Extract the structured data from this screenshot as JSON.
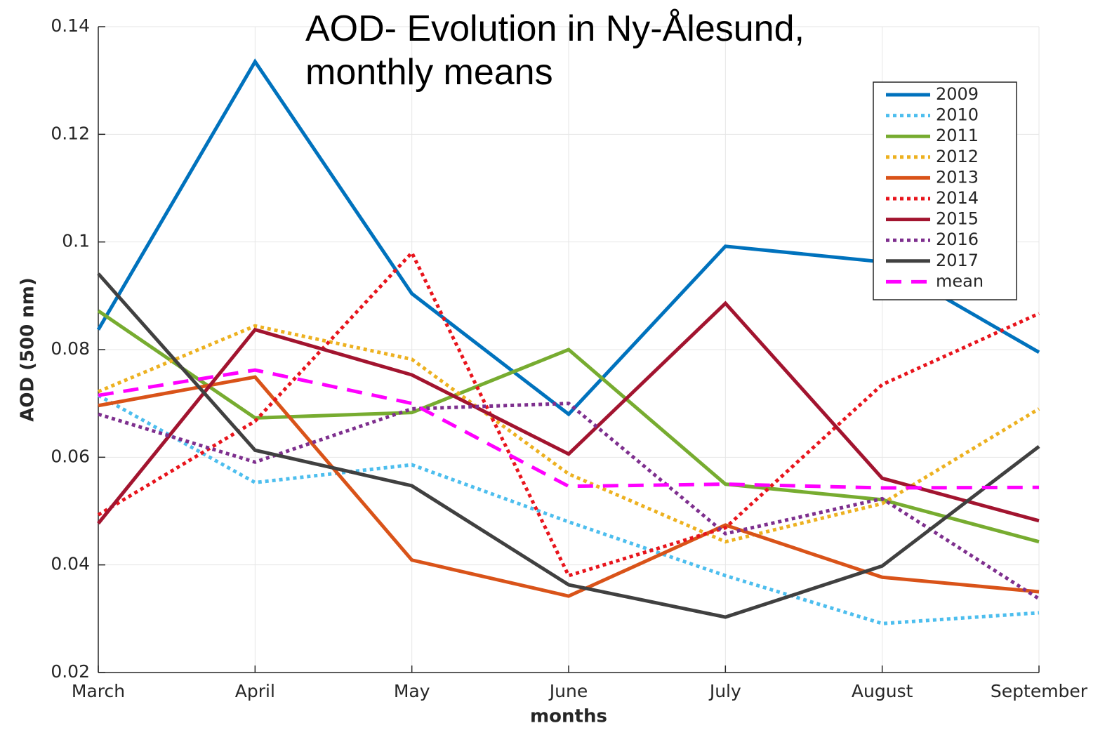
{
  "chart_data": {
    "type": "line",
    "title": "AOD- Evolution in Ny-Ålesund, monthly means",
    "x_label": "months",
    "y_label": "AOD (500 nm)",
    "categories": [
      "March",
      "April",
      "May",
      "June",
      "July",
      "August",
      "September"
    ],
    "ylim": [
      0.02,
      0.14
    ],
    "yticks": [
      0.02,
      0.04,
      0.06,
      0.08,
      0.1,
      0.12,
      0.14
    ],
    "grid": true,
    "legend": "upper right",
    "series": [
      {
        "name": "2009",
        "color": "#0072bd",
        "style": "solid",
        "values": [
          0.0837,
          0.1335,
          0.0904,
          0.068,
          0.0992,
          0.0963,
          0.0795
        ]
      },
      {
        "name": "2010",
        "color": "#4dbeee",
        "style": "dotted",
        "values": [
          0.0715,
          0.0553,
          0.0586,
          0.048,
          0.038,
          0.0291,
          0.0311
        ]
      },
      {
        "name": "2011",
        "color": "#77ac30",
        "style": "solid",
        "values": [
          0.0872,
          0.0673,
          0.0683,
          0.08,
          0.055,
          0.0521,
          0.0443
        ]
      },
      {
        "name": "2012",
        "color": "#edb120",
        "style": "dotted",
        "values": [
          0.0722,
          0.0844,
          0.0782,
          0.0569,
          0.0443,
          0.0514,
          0.069
        ]
      },
      {
        "name": "2013",
        "color": "#d95319",
        "style": "solid",
        "values": [
          0.0696,
          0.0749,
          0.0409,
          0.0342,
          0.0474,
          0.0377,
          0.035
        ]
      },
      {
        "name": "2014",
        "color": "#e8141c",
        "style": "dotted",
        "values": [
          0.0493,
          0.0667,
          0.098,
          0.038,
          0.0469,
          0.0735,
          0.0867
        ]
      },
      {
        "name": "2015",
        "color": "#a2142f",
        "style": "solid",
        "values": [
          0.0477,
          0.0837,
          0.0753,
          0.0606,
          0.0886,
          0.0561,
          0.0482
        ]
      },
      {
        "name": "2016",
        "color": "#7e2f8e",
        "style": "dotted",
        "values": [
          0.068,
          0.0591,
          0.069,
          0.07,
          0.0458,
          0.0523,
          0.0337
        ]
      },
      {
        "name": "2017",
        "color": "#404040",
        "style": "solid",
        "values": [
          0.0941,
          0.0613,
          0.0547,
          0.0363,
          0.0303,
          0.0398,
          0.062
        ]
      },
      {
        "name": "mean",
        "color": "#ff00ff",
        "style": "dashed",
        "values": [
          0.0715,
          0.0762,
          0.07,
          0.0546,
          0.055,
          0.0543,
          0.0544
        ]
      }
    ]
  }
}
